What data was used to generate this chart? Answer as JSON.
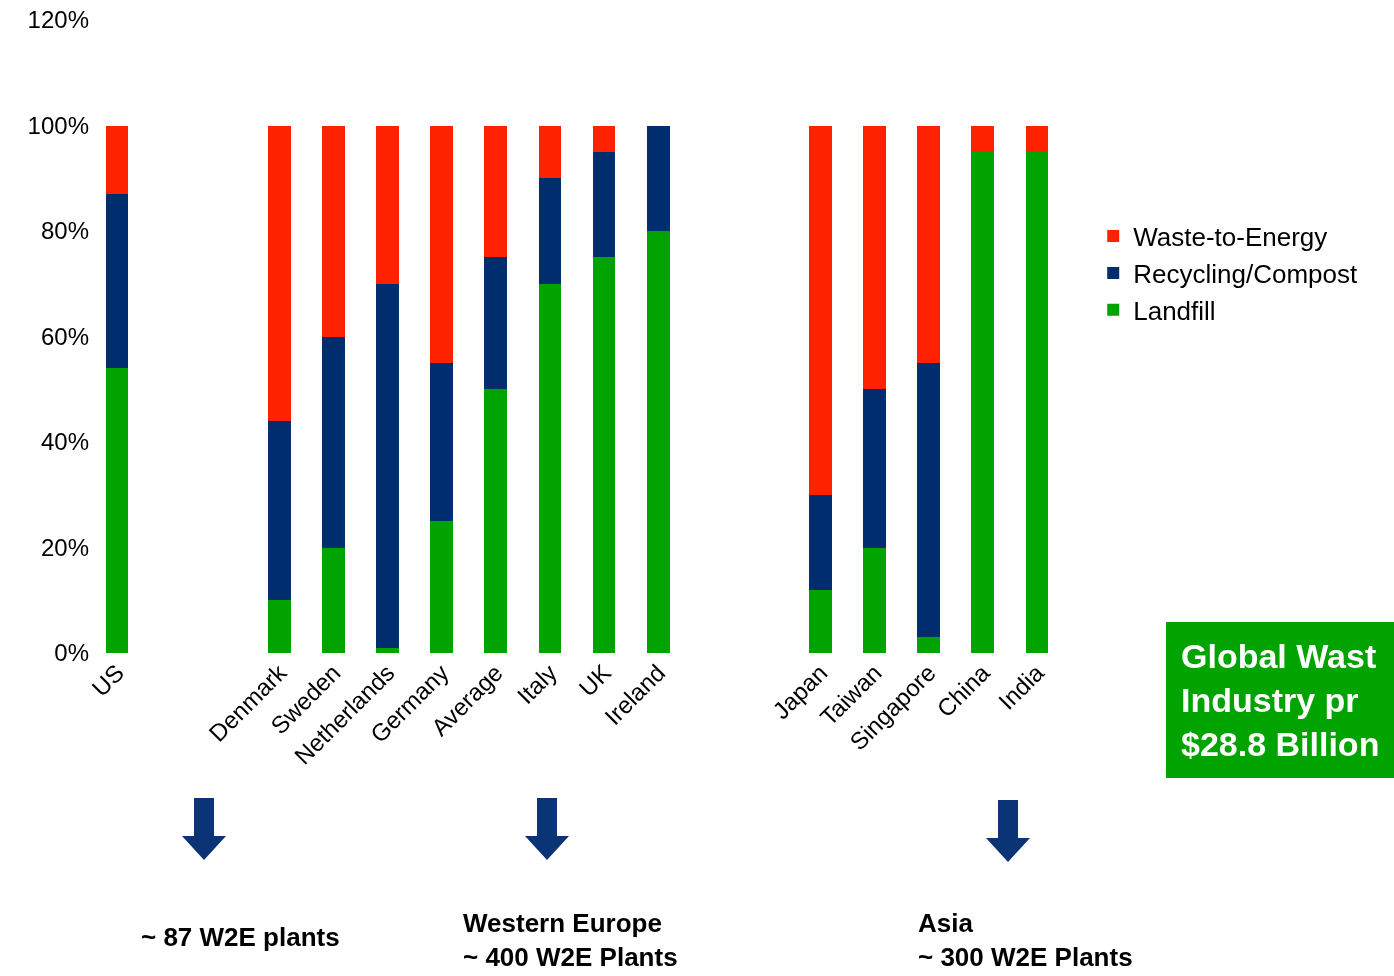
{
  "chart_data": {
    "type": "bar",
    "stacked": true,
    "categories": [
      "US",
      null,
      null,
      "Denmark",
      "Sweden",
      "Netherlands",
      "Germany",
      "Average",
      "Italy",
      "UK",
      "Ireland",
      null,
      null,
      "Japan",
      "Taiwan",
      "Singapore",
      "China",
      "India"
    ],
    "series": [
      {
        "name": "Landfill",
        "color": "#00a300",
        "values": [
          54,
          null,
          null,
          10,
          20,
          1,
          25,
          50,
          70,
          75,
          80,
          null,
          null,
          12,
          20,
          3,
          95,
          95
        ]
      },
      {
        "name": "Recycling/Compost",
        "color": "#002d6e",
        "values": [
          33,
          null,
          null,
          34,
          40,
          69,
          30,
          25,
          20,
          20,
          20,
          null,
          null,
          18,
          30,
          52,
          0,
          0
        ]
      },
      {
        "name": "Waste-to-Energy",
        "color": "#ff2200",
        "values": [
          13,
          null,
          null,
          56,
          40,
          30,
          45,
          25,
          10,
          5,
          0,
          null,
          null,
          70,
          50,
          45,
          5,
          5
        ]
      }
    ],
    "ylim": [
      0,
      120
    ],
    "yticks": [
      {
        "value": 0,
        "label": "0%"
      },
      {
        "value": 20,
        "label": "20%"
      },
      {
        "value": 40,
        "label": "40%"
      },
      {
        "value": 60,
        "label": "60%"
      },
      {
        "value": 80,
        "label": "80%"
      },
      {
        "value": 100,
        "label": "100%"
      },
      {
        "value": 120,
        "label": "120%"
      }
    ],
    "grid": false,
    "legend": "right",
    "annotations": [
      "~ 87 W2E plants",
      "Western Europe\n~ 400 W2E Plants",
      "Asia\n~ 300 W2E Plants",
      "Global Wast\nIndustry pr\n$28.8 Billion"
    ]
  }
}
